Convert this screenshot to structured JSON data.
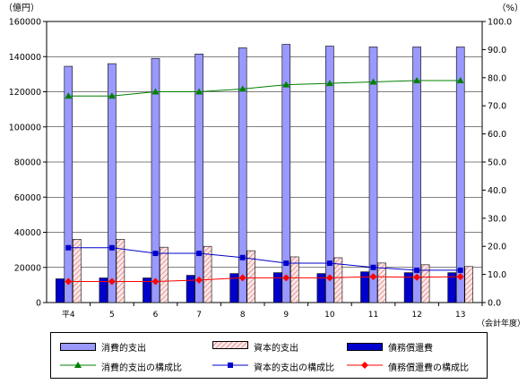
{
  "chart_data": {
    "type": "bar",
    "categories": [
      "平4",
      "5",
      "6",
      "7",
      "8",
      "9",
      "10",
      "11",
      "12",
      "13"
    ],
    "left_axis": {
      "unit_label": "（億円）",
      "ylim": [
        0,
        160000
      ],
      "ticks": [
        0,
        20000,
        40000,
        60000,
        80000,
        100000,
        120000,
        140000,
        160000
      ]
    },
    "right_axis": {
      "unit_label": "（%）",
      "ylim": [
        0,
        100
      ],
      "ticks": [
        "0.0",
        "10.0",
        "20.0",
        "30.0",
        "40.0",
        "50.0",
        "60.0",
        "70.0",
        "80.0",
        "90.0",
        "100.0"
      ]
    },
    "xlabel": "（会計年度）",
    "series": [
      {
        "name": "消費的支出",
        "kind": "bar",
        "axis": "left",
        "color": "#9999ff",
        "values": [
          134500,
          136000,
          139000,
          141500,
          145000,
          147000,
          146000,
          145500,
          145500,
          145500
        ]
      },
      {
        "name": "資本的支出",
        "kind": "bar",
        "axis": "left",
        "color": "#ffcccc",
        "pattern": "hatch",
        "values": [
          36000,
          36000,
          31500,
          32000,
          29500,
          26000,
          25500,
          22500,
          21500,
          20500
        ]
      },
      {
        "name": "債務償還費",
        "kind": "bar",
        "axis": "left",
        "color": "#0000cc",
        "values": [
          13500,
          14000,
          14000,
          15500,
          16500,
          17000,
          16500,
          17500,
          17000,
          17000
        ]
      },
      {
        "name": "消費的支出の構成比",
        "kind": "line",
        "axis": "right",
        "color": "#008000",
        "marker": "triangle",
        "values": [
          73.5,
          73.5,
          75.0,
          75.0,
          76.0,
          77.5,
          78.0,
          78.5,
          79.0,
          79.0
        ]
      },
      {
        "name": "資本的支出の構成比",
        "kind": "line",
        "axis": "right",
        "color": "#0000cc",
        "marker": "square",
        "values": [
          19.5,
          19.5,
          17.5,
          17.5,
          16.0,
          14.0,
          14.0,
          12.5,
          11.5,
          11.5
        ]
      },
      {
        "name": "債務償還費の構成比",
        "kind": "line",
        "axis": "right",
        "color": "#ff0000",
        "marker": "diamond",
        "values": [
          7.5,
          7.5,
          7.5,
          8.0,
          8.8,
          8.8,
          8.8,
          9.2,
          9.0,
          9.2
        ]
      }
    ],
    "grid": "horizontal",
    "legend_position": "bottom"
  }
}
